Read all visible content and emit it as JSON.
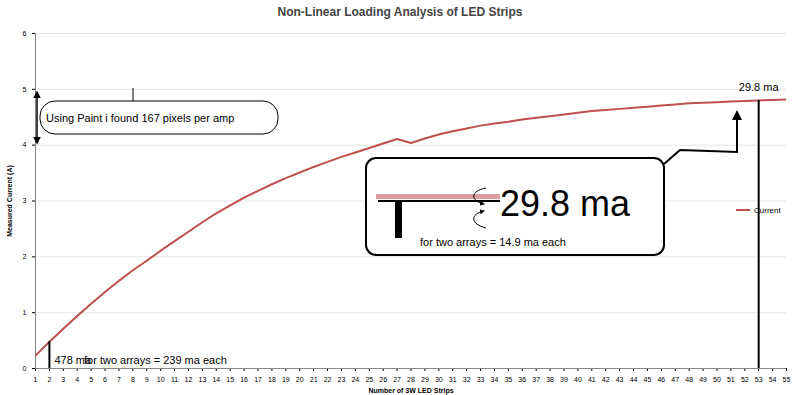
{
  "chart_data": {
    "type": "line",
    "title": "Non-Linear Loading Analysis of LED Strips",
    "x_label": "Number of 3W LED Strips",
    "y_label": "Measured Current (A)",
    "x": [
      1,
      2,
      3,
      4,
      5,
      6,
      7,
      8,
      9,
      10,
      11,
      12,
      13,
      14,
      15,
      16,
      17,
      18,
      19,
      20,
      21,
      22,
      23,
      24,
      25,
      26,
      27,
      28,
      29,
      30,
      31,
      32,
      33,
      34,
      35,
      36,
      37,
      38,
      39,
      40,
      41,
      42,
      43,
      44,
      45,
      46,
      47,
      48,
      49,
      50,
      51,
      52,
      53,
      54,
      55
    ],
    "series": [
      {
        "name": "Current",
        "color": "#c0504d",
        "values": [
          0.23,
          0.48,
          0.71,
          0.94,
          1.16,
          1.37,
          1.57,
          1.76,
          1.93,
          2.11,
          2.28,
          2.45,
          2.62,
          2.78,
          2.92,
          3.06,
          3.18,
          3.3,
          3.41,
          3.51,
          3.61,
          3.7,
          3.79,
          3.87,
          3.95,
          4.03,
          4.11,
          4.04,
          4.12,
          4.19,
          4.25,
          4.3,
          4.35,
          4.39,
          4.42,
          4.46,
          4.49,
          4.52,
          4.55,
          4.58,
          4.61,
          4.63,
          4.65,
          4.67,
          4.69,
          4.71,
          4.73,
          4.75,
          4.76,
          4.77,
          4.78,
          4.79,
          4.8,
          4.81,
          4.82
        ]
      }
    ],
    "xlim": [
      1,
      55
    ],
    "xticks": [
      1,
      2,
      3,
      4,
      5,
      6,
      7,
      8,
      9,
      10,
      11,
      12,
      13,
      14,
      15,
      16,
      17,
      18,
      19,
      20,
      21,
      22,
      23,
      24,
      25,
      26,
      27,
      28,
      29,
      30,
      31,
      32,
      33,
      34,
      35,
      36,
      37,
      38,
      39,
      40,
      41,
      42,
      43,
      44,
      45,
      46,
      47,
      48,
      49,
      50,
      51,
      52,
      53,
      54,
      55
    ],
    "ylim": [
      0,
      6
    ],
    "yticks": [
      0,
      1,
      2,
      3,
      4,
      5,
      6
    ],
    "grid": true,
    "legend": "right",
    "annotations": [
      {
        "text": "Using  Paint i found 167 pixels per amp"
      },
      {
        "text": "29.8 ma",
        "x": 53,
        "y": 4.8
      },
      {
        "text": "29.8 ma"
      },
      {
        "text": "for two arrays = 14.9 ma each"
      },
      {
        "text": "478 ma",
        "x": 2,
        "y": 0.478
      },
      {
        "text": "for two arrays = 239 ma each"
      }
    ]
  }
}
